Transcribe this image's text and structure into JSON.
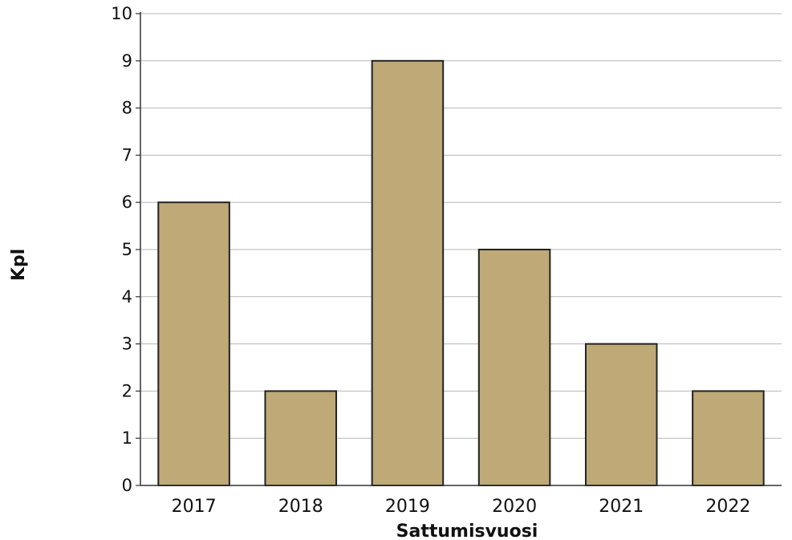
{
  "chart_data": {
    "type": "bar",
    "title": "",
    "xlabel": "Sattumisvuosi",
    "ylabel": "Kpl",
    "categories": [
      "2017",
      "2018",
      "2019",
      "2020",
      "2021",
      "2022"
    ],
    "values": [
      6,
      2,
      9,
      5,
      3,
      2
    ],
    "ylim": [
      0,
      10
    ],
    "yticks": [
      "0",
      "1",
      "2",
      "3",
      "4",
      "5",
      "6",
      "7",
      "8",
      "9",
      "10"
    ],
    "grid": true,
    "legend": "none",
    "bar_color": "#bea977",
    "bar_edge_color": "#222222"
  }
}
